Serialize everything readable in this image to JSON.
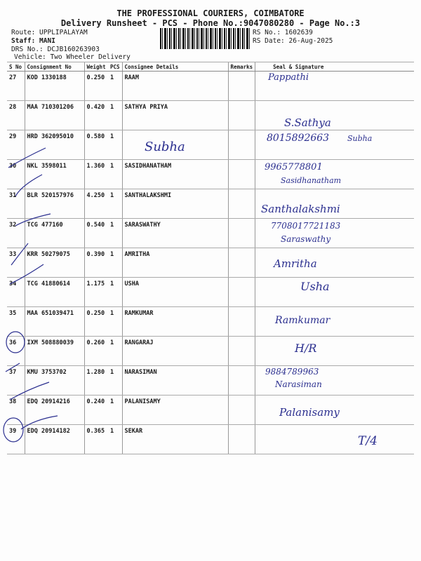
{
  "header": {
    "company": "THE PROFESSIONAL COURIERS, COIMBATORE",
    "subtitle": "Delivery Runsheet - PCS - Phone No.:9047080280 - Page No.:3",
    "route": "Route: UPPLIPALAYAM",
    "staff": "Staff: MANI",
    "drs": "DRS No.: DCJB160263903",
    "vehicle": "Vehicle: Two Wheeler Delivery",
    "rs_no": "RS No.: 1602639",
    "rs_date": "RS Date: 26-Aug-2025"
  },
  "columns": [
    "S No",
    "Consignment No",
    "Weight",
    "PCS",
    "Consignee Details",
    "Remarks",
    "Seal & Signature"
  ],
  "rows": [
    {
      "sno": "27",
      "cn": "KOD 1330188",
      "weight": "0.250",
      "pcs": "1",
      "consignee": "RAAM"
    },
    {
      "sno": "28",
      "cn": "MAA 710301206",
      "weight": "0.420",
      "pcs": "1",
      "consignee": "SATHYA PRIYA"
    },
    {
      "sno": "29",
      "cn": "HRD 362095010",
      "weight": "0.580",
      "pcs": "1",
      "consignee": ""
    },
    {
      "sno": "30",
      "cn": "NKL 3598011",
      "weight": "1.360",
      "pcs": "1",
      "consignee": "SASIDHANATHAM"
    },
    {
      "sno": "31",
      "cn": "BLR 520157976",
      "weight": "4.250",
      "pcs": "1",
      "consignee": "SANTHALAKSHMI"
    },
    {
      "sno": "32",
      "cn": "TCG 477160",
      "weight": "0.540",
      "pcs": "1",
      "consignee": "SARASWATHY"
    },
    {
      "sno": "33",
      "cn": "KRR 50279075",
      "weight": "0.390",
      "pcs": "1",
      "consignee": "AMRITHA"
    },
    {
      "sno": "34",
      "cn": "TCG 41880614",
      "weight": "1.175",
      "pcs": "1",
      "consignee": "USHA"
    },
    {
      "sno": "35",
      "cn": "MAA 651039471",
      "weight": "0.250",
      "pcs": "1",
      "consignee": "RAMKUMAR"
    },
    {
      "sno": "36",
      "cn": "IXM 508880039",
      "weight": "0.260",
      "pcs": "1",
      "consignee": "RANGARAJ"
    },
    {
      "sno": "37",
      "cn": "KMU 3753702",
      "weight": "1.280",
      "pcs": "1",
      "consignee": "NARASIMAN"
    },
    {
      "sno": "38",
      "cn": "EDQ 20914216",
      "weight": "0.240",
      "pcs": "1",
      "consignee": "PALANISAMY"
    },
    {
      "sno": "39",
      "cn": "EDQ 20914182",
      "weight": "0.365",
      "pcs": "1",
      "consignee": "SEKAR"
    }
  ],
  "handwriting": [
    "Pappathi",
    "S.Sathya",
    "8015892663",
    "Subha",
    "Subha",
    "9965778801",
    "Sasidhanatham",
    "Santhalakshmi",
    "7708017721183",
    "Saraswathy",
    "Amritha",
    "Usha",
    "Ramkumar",
    "H/R",
    "9884789963",
    "Narasiman",
    "Palanisamy",
    "T/4"
  ],
  "ink_color": "#2b2f8f"
}
